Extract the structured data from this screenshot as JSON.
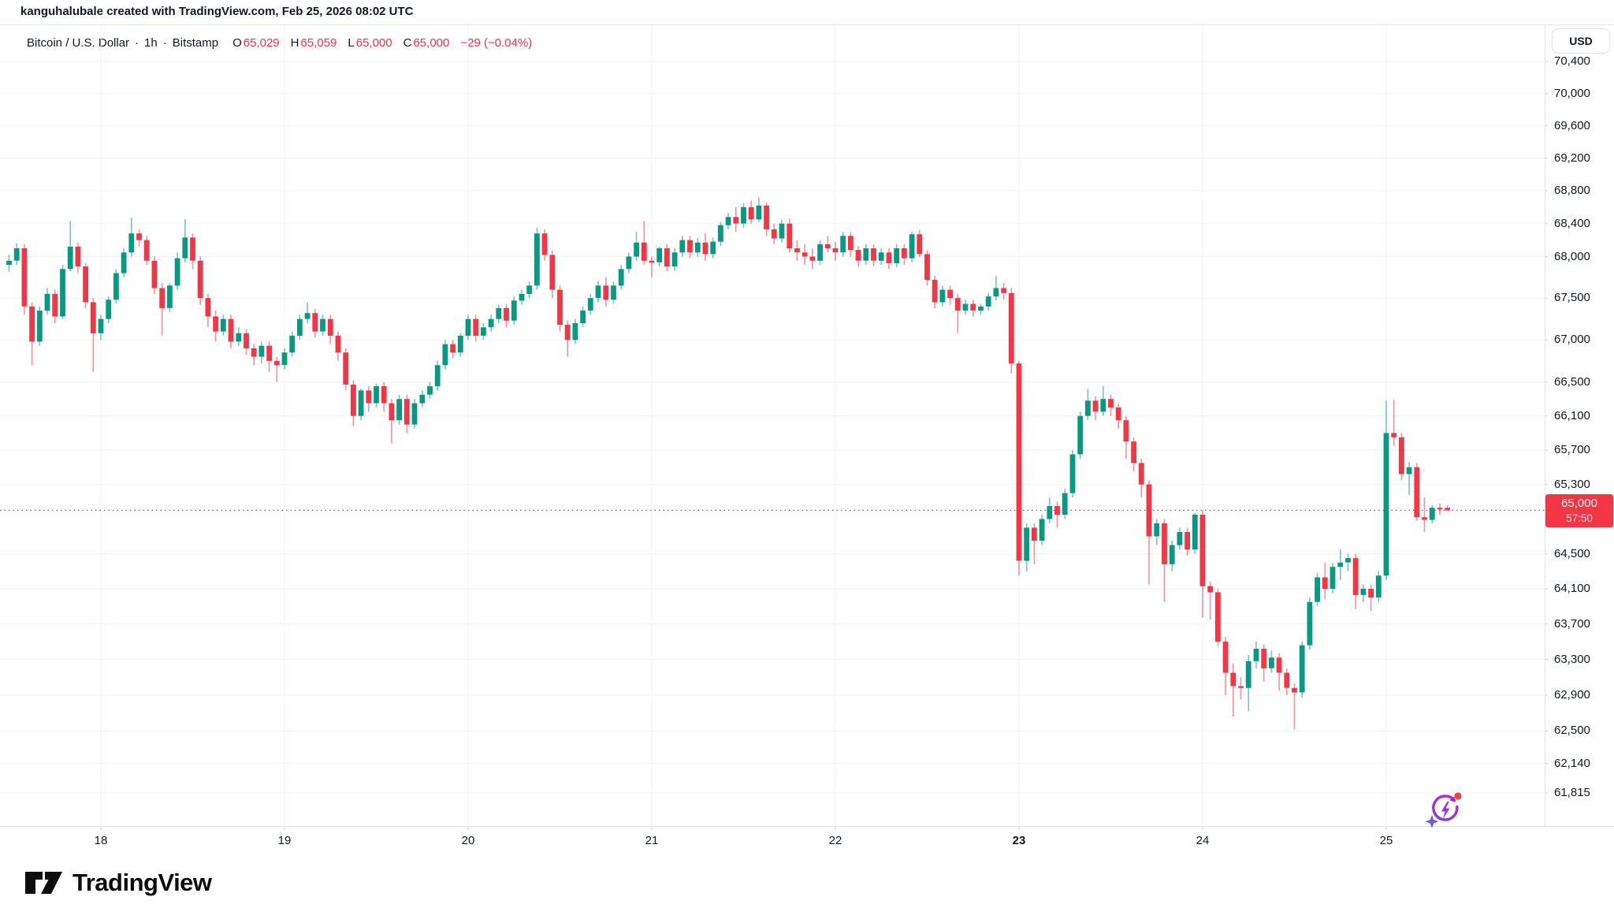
{
  "attribution": "kanguhalubale created with TradingView.com, Feb 25, 2026 08:02 UTC",
  "header": {
    "symbol": "Bitcoin / U.S. Dollar",
    "separator": "·",
    "interval": "1h",
    "exchange": "Bitstamp",
    "ohlc": {
      "o_label": "O",
      "o": "65,029",
      "h_label": "H",
      "h": "65,059",
      "l_label": "L",
      "l": "65,000",
      "c_label": "C",
      "c": "65,000",
      "change": "−29 (−0.04%)"
    }
  },
  "currency_button": "USD",
  "logo_text": "TradingView",
  "colors": {
    "up": "#089981",
    "down": "#f23645",
    "grid": "#f0f3fa",
    "hairline": "#e0e3eb",
    "axis_text": "#131722",
    "last_price": "#f23645"
  },
  "chart_data": {
    "type": "candlestick",
    "title": "Bitcoin / U.S. Dollar",
    "interval": "1h",
    "exchange": "Bitstamp",
    "unit": "USD",
    "grid": true,
    "y_axis": {
      "scale": "log",
      "side": "right",
      "range_top": 70400,
      "range_bottom": 61815,
      "labels": [
        {
          "text": "70,400",
          "price": 70400
        },
        {
          "text": "70,000",
          "price": 70000
        },
        {
          "text": "69,600",
          "price": 69600
        },
        {
          "text": "69,200",
          "price": 69200
        },
        {
          "text": "68,800",
          "price": 68800
        },
        {
          "text": "68,400",
          "price": 68400
        },
        {
          "text": "68,000",
          "price": 68000
        },
        {
          "text": "67,500",
          "price": 67500
        },
        {
          "text": "67,000",
          "price": 67000
        },
        {
          "text": "66,500",
          "price": 66500
        },
        {
          "text": "66,100",
          "price": 66100
        },
        {
          "text": "65,700",
          "price": 65700
        },
        {
          "text": "65,300",
          "price": 65300
        },
        {
          "text": "64,500",
          "price": 64500
        },
        {
          "text": "64,100",
          "price": 64100
        },
        {
          "text": "63,700",
          "price": 63700
        },
        {
          "text": "63,300",
          "price": 63300
        },
        {
          "text": "62,900",
          "price": 62900
        },
        {
          "text": "62,500",
          "price": 62500
        },
        {
          "text": "62,140",
          "price": 62140
        },
        {
          "text": "61,815",
          "price": 61815
        }
      ]
    },
    "x_axis": {
      "labels": [
        {
          "text": "18",
          "index": 12,
          "bold": false
        },
        {
          "text": "19",
          "index": 36,
          "bold": false
        },
        {
          "text": "20",
          "index": 60,
          "bold": false
        },
        {
          "text": "21",
          "index": 84,
          "bold": false
        },
        {
          "text": "22",
          "index": 108,
          "bold": false
        },
        {
          "text": "23",
          "index": 132,
          "bold": true
        },
        {
          "text": "24",
          "index": 156,
          "bold": false
        },
        {
          "text": "25",
          "index": 180,
          "bold": false
        }
      ]
    },
    "last_price": {
      "price": 65000,
      "text": "65,000",
      "countdown": "57:50"
    },
    "candles": [
      [
        67900,
        68020,
        67820,
        67950
      ],
      [
        67950,
        68160,
        67900,
        68100
      ],
      [
        68100,
        68150,
        67300,
        67400
      ],
      [
        67400,
        67450,
        66700,
        66980
      ],
      [
        66980,
        67400,
        66930,
        67350
      ],
      [
        67350,
        67620,
        67300,
        67550
      ],
      [
        67550,
        67600,
        67200,
        67280
      ],
      [
        67280,
        67900,
        67250,
        67850
      ],
      [
        67850,
        68430,
        67820,
        68120
      ],
      [
        68120,
        68170,
        67800,
        67880
      ],
      [
        67880,
        67920,
        67380,
        67450
      ],
      [
        67450,
        67500,
        66620,
        67080
      ],
      [
        67080,
        67300,
        67000,
        67250
      ],
      [
        67250,
        67520,
        67200,
        67480
      ],
      [
        67480,
        67850,
        67430,
        67800
      ],
      [
        67800,
        68100,
        67750,
        68050
      ],
      [
        68050,
        68470,
        68000,
        68280
      ],
      [
        68280,
        68330,
        68120,
        68200
      ],
      [
        68200,
        68250,
        67900,
        67950
      ],
      [
        67950,
        68000,
        67550,
        67620
      ],
      [
        67620,
        67680,
        67050,
        67380
      ],
      [
        67380,
        67680,
        67330,
        67650
      ],
      [
        67650,
        68050,
        67600,
        67980
      ],
      [
        67980,
        68450,
        67930,
        68230
      ],
      [
        68230,
        68280,
        67850,
        67950
      ],
      [
        67950,
        68000,
        67420,
        67500
      ],
      [
        67500,
        67550,
        67150,
        67280
      ],
      [
        67280,
        67350,
        66980,
        67100
      ],
      [
        67100,
        67300,
        67050,
        67250
      ],
      [
        67250,
        67300,
        66900,
        66980
      ],
      [
        66980,
        67150,
        66930,
        67080
      ],
      [
        67080,
        67130,
        66820,
        66900
      ],
      [
        66900,
        66950,
        66700,
        66800
      ],
      [
        66800,
        66980,
        66720,
        66930
      ],
      [
        66930,
        66980,
        66620,
        66750
      ],
      [
        66750,
        66800,
        66500,
        66700
      ],
      [
        66700,
        66900,
        66650,
        66850
      ],
      [
        66850,
        67100,
        66800,
        67050
      ],
      [
        67050,
        67300,
        67000,
        67250
      ],
      [
        67250,
        67450,
        67200,
        67320
      ],
      [
        67320,
        67370,
        67030,
        67100
      ],
      [
        67100,
        67300,
        67050,
        67250
      ],
      [
        67250,
        67300,
        66950,
        67050
      ],
      [
        67050,
        67100,
        66750,
        66850
      ],
      [
        66850,
        66900,
        66400,
        66470
      ],
      [
        66470,
        66520,
        65980,
        66100
      ],
      [
        66100,
        66420,
        66050,
        66400
      ],
      [
        66400,
        66450,
        66150,
        66250
      ],
      [
        66250,
        66480,
        66200,
        66450
      ],
      [
        66450,
        66500,
        66150,
        66250
      ],
      [
        66250,
        66300,
        65780,
        66050
      ],
      [
        66050,
        66350,
        66000,
        66300
      ],
      [
        66300,
        66350,
        65900,
        66000
      ],
      [
        66000,
        66300,
        65950,
        66250
      ],
      [
        66250,
        66400,
        66200,
        66350
      ],
      [
        66350,
        66500,
        66300,
        66450
      ],
      [
        66450,
        66750,
        66400,
        66700
      ],
      [
        66700,
        67000,
        66650,
        66950
      ],
      [
        66950,
        67000,
        66780,
        66850
      ],
      [
        66850,
        67080,
        66800,
        67050
      ],
      [
        67050,
        67300,
        67000,
        67250
      ],
      [
        67250,
        67300,
        66980,
        67050
      ],
      [
        67050,
        67200,
        67000,
        67150
      ],
      [
        67150,
        67300,
        67100,
        67250
      ],
      [
        67250,
        67420,
        67200,
        67380
      ],
      [
        67380,
        67430,
        67150,
        67230
      ],
      [
        67230,
        67520,
        67180,
        67470
      ],
      [
        67470,
        67600,
        67420,
        67550
      ],
      [
        67550,
        67700,
        67500,
        67650
      ],
      [
        67650,
        68350,
        67600,
        68280
      ],
      [
        68280,
        68330,
        67950,
        68020
      ],
      [
        68020,
        68070,
        67500,
        67600
      ],
      [
        67600,
        67650,
        67100,
        67180
      ],
      [
        67180,
        67230,
        66800,
        67000
      ],
      [
        67000,
        67250,
        66950,
        67200
      ],
      [
        67200,
        67400,
        67150,
        67350
      ],
      [
        67350,
        67550,
        67300,
        67500
      ],
      [
        67500,
        67700,
        67450,
        67650
      ],
      [
        67650,
        67750,
        67400,
        67480
      ],
      [
        67480,
        67700,
        67430,
        67650
      ],
      [
        67650,
        67900,
        67600,
        67850
      ],
      [
        67850,
        68050,
        67800,
        68000
      ],
      [
        68000,
        68300,
        67950,
        68170
      ],
      [
        68170,
        68430,
        67900,
        67950
      ],
      [
        67950,
        68000,
        67750,
        67930
      ],
      [
        67930,
        68120,
        67880,
        68100
      ],
      [
        68100,
        68150,
        67820,
        67880
      ],
      [
        67880,
        68100,
        67830,
        68050
      ],
      [
        68050,
        68250,
        68000,
        68200
      ],
      [
        68200,
        68250,
        67980,
        68050
      ],
      [
        68050,
        68220,
        68000,
        68170
      ],
      [
        68170,
        68280,
        67950,
        68030
      ],
      [
        68030,
        68230,
        67980,
        68180
      ],
      [
        68180,
        68420,
        68130,
        68380
      ],
      [
        68380,
        68530,
        68330,
        68480
      ],
      [
        68480,
        68600,
        68300,
        68400
      ],
      [
        68400,
        68650,
        68350,
        68600
      ],
      [
        68600,
        68680,
        68400,
        68450
      ],
      [
        68450,
        68720,
        68420,
        68620
      ],
      [
        68620,
        68660,
        68250,
        68330
      ],
      [
        68330,
        68400,
        68150,
        68220
      ],
      [
        68220,
        68450,
        68170,
        68400
      ],
      [
        68400,
        68460,
        68050,
        68100
      ],
      [
        68100,
        68200,
        67950,
        68050
      ],
      [
        68050,
        68150,
        67900,
        68000
      ],
      [
        68000,
        68100,
        67850,
        67950
      ],
      [
        67950,
        68200,
        67900,
        68150
      ],
      [
        68150,
        68250,
        68050,
        68100
      ],
      [
        68100,
        68180,
        67950,
        68050
      ],
      [
        68050,
        68300,
        68000,
        68250
      ],
      [
        68250,
        68300,
        68000,
        68080
      ],
      [
        68080,
        68130,
        67880,
        67950
      ],
      [
        67950,
        68150,
        67900,
        68100
      ],
      [
        68100,
        68150,
        67880,
        67950
      ],
      [
        67950,
        68100,
        67900,
        68050
      ],
      [
        68050,
        68100,
        67850,
        67920
      ],
      [
        67920,
        68150,
        67870,
        68100
      ],
      [
        68100,
        68150,
        67900,
        67980
      ],
      [
        67980,
        68300,
        67930,
        68270
      ],
      [
        68270,
        68320,
        67990,
        68030
      ],
      [
        68030,
        68080,
        67650,
        67720
      ],
      [
        67720,
        67770,
        67380,
        67450
      ],
      [
        67450,
        67650,
        67400,
        67600
      ],
      [
        67600,
        67650,
        67420,
        67500
      ],
      [
        67500,
        67550,
        67080,
        67350
      ],
      [
        67350,
        67480,
        67300,
        67430
      ],
      [
        67430,
        67480,
        67280,
        67350
      ],
      [
        67350,
        67430,
        67300,
        67400
      ],
      [
        67400,
        67560,
        67350,
        67520
      ],
      [
        67520,
        67770,
        67470,
        67620
      ],
      [
        67620,
        67680,
        67480,
        67560
      ],
      [
        67560,
        67620,
        66600,
        66720
      ],
      [
        66720,
        66750,
        64250,
        64420
      ],
      [
        64420,
        64850,
        64300,
        64800
      ],
      [
        64800,
        64850,
        64380,
        64650
      ],
      [
        64650,
        64950,
        64600,
        64900
      ],
      [
        64900,
        65150,
        64850,
        65050
      ],
      [
        65050,
        65100,
        64800,
        64950
      ],
      [
        64950,
        65250,
        64900,
        65200
      ],
      [
        65200,
        65700,
        65150,
        65650
      ],
      [
        65650,
        66150,
        65600,
        66100
      ],
      [
        66100,
        66420,
        66050,
        66280
      ],
      [
        66280,
        66330,
        66050,
        66150
      ],
      [
        66150,
        66450,
        66100,
        66300
      ],
      [
        66300,
        66350,
        66100,
        66200
      ],
      [
        66200,
        66250,
        65950,
        66050
      ],
      [
        66050,
        66100,
        65600,
        65800
      ],
      [
        65800,
        65850,
        65450,
        65550
      ],
      [
        65550,
        65600,
        65150,
        65300
      ],
      [
        65300,
        65350,
        64150,
        64700
      ],
      [
        64700,
        64900,
        64600,
        64850
      ],
      [
        64850,
        64900,
        63950,
        64380
      ],
      [
        64380,
        64650,
        64300,
        64600
      ],
      [
        64600,
        64800,
        64550,
        64750
      ],
      [
        64750,
        64800,
        64480,
        64550
      ],
      [
        64550,
        64970,
        64500,
        64950
      ],
      [
        64950,
        65000,
        63770,
        64130
      ],
      [
        64130,
        64180,
        63750,
        64060
      ],
      [
        64060,
        64100,
        63450,
        63500
      ],
      [
        63500,
        63550,
        62900,
        63150
      ],
      [
        63150,
        63250,
        62660,
        63000
      ],
      [
        63000,
        63100,
        62850,
        62980
      ],
      [
        62980,
        63350,
        62720,
        63280
      ],
      [
        63280,
        63500,
        63200,
        63420
      ],
      [
        63420,
        63470,
        63050,
        63200
      ],
      [
        63200,
        63400,
        63150,
        63320
      ],
      [
        63320,
        63370,
        62950,
        63150
      ],
      [
        63150,
        63200,
        62900,
        62980
      ],
      [
        62980,
        63030,
        62520,
        62930
      ],
      [
        62930,
        63500,
        62870,
        63460
      ],
      [
        63460,
        64000,
        63410,
        63950
      ],
      [
        63950,
        64280,
        63900,
        64230
      ],
      [
        64230,
        64400,
        63980,
        64100
      ],
      [
        64100,
        64400,
        64050,
        64350
      ],
      [
        64350,
        64550,
        64200,
        64400
      ],
      [
        64400,
        64500,
        64300,
        64450
      ],
      [
        64450,
        64500,
        63870,
        64030
      ],
      [
        64030,
        64150,
        63950,
        64100
      ],
      [
        64100,
        64150,
        63850,
        64000
      ],
      [
        64000,
        64300,
        63950,
        64250
      ],
      [
        64250,
        66280,
        64200,
        65900
      ],
      [
        65900,
        66290,
        65750,
        65850
      ],
      [
        65850,
        65900,
        65350,
        65420
      ],
      [
        65420,
        65560,
        65180,
        65500
      ],
      [
        65500,
        65550,
        64880,
        64920
      ],
      [
        64920,
        65150,
        64750,
        64890
      ],
      [
        64890,
        65060,
        64850,
        65030
      ],
      [
        65030,
        65080,
        64950,
        65029
      ],
      [
        65029,
        65059,
        65000,
        65000
      ]
    ]
  }
}
